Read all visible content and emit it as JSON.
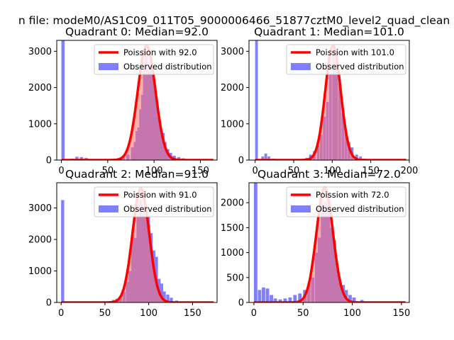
{
  "figure": {
    "title": "n file: modeM0/AS1C09_011T05_9000006466_51877cztM0_level2_quad_clean"
  },
  "style": {
    "hist_color": "#8080ff",
    "fit_color": "#ff0000",
    "fit_fill": "rgba(255,110,110,0.55)",
    "axis_color": "#000000"
  },
  "chart_data": [
    {
      "type": "bar",
      "title": "Quadrant 0: Median=92.0",
      "legend": [
        "Poission with 92.0",
        "Observed distribution"
      ],
      "legend_position": "top-right",
      "xlim": [
        -5,
        168
      ],
      "ylim": [
        0,
        3300
      ],
      "xticks": [
        0,
        50,
        100,
        150
      ],
      "yticks": [
        0,
        1000,
        2000,
        3000
      ],
      "mean": 92,
      "fit_peak": 3150,
      "bins": [
        [
          0,
          3300
        ],
        [
          10,
          40
        ],
        [
          15,
          90
        ],
        [
          20,
          80
        ],
        [
          25,
          60
        ],
        [
          30,
          30
        ],
        [
          40,
          20
        ],
        [
          50,
          10
        ],
        [
          60,
          20
        ],
        [
          65,
          60
        ],
        [
          70,
          150
        ],
        [
          75,
          350
        ],
        [
          78,
          500
        ],
        [
          80,
          800
        ],
        [
          82,
          900
        ],
        [
          84,
          1400
        ],
        [
          86,
          1800
        ],
        [
          88,
          2500
        ],
        [
          90,
          2900
        ],
        [
          92,
          2500
        ],
        [
          94,
          2600
        ],
        [
          96,
          2500
        ],
        [
          98,
          2100
        ],
        [
          100,
          1650
        ],
        [
          102,
          1200
        ],
        [
          104,
          1100
        ],
        [
          106,
          800
        ],
        [
          108,
          750
        ],
        [
          110,
          500
        ],
        [
          113,
          300
        ],
        [
          116,
          200
        ],
        [
          120,
          120
        ],
        [
          125,
          80
        ],
        [
          130,
          50
        ],
        [
          140,
          20
        ],
        [
          150,
          10
        ],
        [
          160,
          5
        ]
      ]
    },
    {
      "type": "bar",
      "title": "Quadrant 1: Median=101.0",
      "legend": [
        "Poission with 101.0",
        "Observed distribution"
      ],
      "legend_position": "top-right",
      "xlim": [
        -8,
        200
      ],
      "ylim": [
        0,
        3300
      ],
      "xticks": [
        0,
        50,
        100,
        150,
        200
      ],
      "yticks": [
        0,
        1000,
        2000,
        3000
      ],
      "mean": 101,
      "fit_peak": 3150,
      "bins": [
        [
          0,
          3300
        ],
        [
          8,
          100
        ],
        [
          12,
          180
        ],
        [
          16,
          100
        ],
        [
          22,
          40
        ],
        [
          30,
          20
        ],
        [
          45,
          10
        ],
        [
          60,
          20
        ],
        [
          65,
          60
        ],
        [
          70,
          150
        ],
        [
          75,
          250
        ],
        [
          80,
          400
        ],
        [
          84,
          700
        ],
        [
          88,
          1200
        ],
        [
          92,
          1600
        ],
        [
          96,
          2400
        ],
        [
          100,
          3000
        ],
        [
          102,
          2700
        ],
        [
          104,
          2600
        ],
        [
          108,
          2100
        ],
        [
          112,
          1300
        ],
        [
          116,
          800
        ],
        [
          120,
          500
        ],
        [
          124,
          350
        ],
        [
          130,
          150
        ],
        [
          135,
          100
        ],
        [
          140,
          40
        ],
        [
          150,
          20
        ],
        [
          165,
          10
        ],
        [
          185,
          5
        ]
      ]
    },
    {
      "type": "bar",
      "title": "Quadrant 2: Median=91.0",
      "legend": [
        "Poission with 91.0",
        "Observed distribution"
      ],
      "legend_position": "top-right",
      "xlim": [
        -5,
        178
      ],
      "ylim": [
        0,
        3800
      ],
      "xticks": [
        0,
        50,
        100,
        150
      ],
      "yticks": [
        0,
        1000,
        2000,
        3000
      ],
      "mean": 91,
      "fit_peak": 3620,
      "bins": [
        [
          0,
          3250
        ],
        [
          30,
          10
        ],
        [
          50,
          20
        ],
        [
          58,
          80
        ],
        [
          62,
          120
        ],
        [
          66,
          200
        ],
        [
          70,
          350
        ],
        [
          74,
          650
        ],
        [
          77,
          1000
        ],
        [
          80,
          2150
        ],
        [
          83,
          2050
        ],
        [
          86,
          2750
        ],
        [
          89,
          3250
        ],
        [
          92,
          2850
        ],
        [
          95,
          2750
        ],
        [
          98,
          2750
        ],
        [
          101,
          2200
        ],
        [
          104,
          1650
        ],
        [
          107,
          1450
        ],
        [
          110,
          750
        ],
        [
          113,
          600
        ],
        [
          116,
          350
        ],
        [
          120,
          250
        ],
        [
          124,
          150
        ],
        [
          130,
          60
        ],
        [
          140,
          30
        ],
        [
          155,
          10
        ],
        [
          170,
          5
        ]
      ]
    },
    {
      "type": "bar",
      "title": "Quadrant 3: Median=72.0",
      "legend": [
        "Poission with 72.0",
        "Observed distribution"
      ],
      "legend_position": "top-right",
      "xlim": [
        -5,
        158
      ],
      "ylim": [
        0,
        2400
      ],
      "xticks": [
        0,
        50,
        100,
        150
      ],
      "yticks": [
        0,
        500,
        1000,
        1500,
        2000
      ],
      "mean": 72,
      "fit_peak": 2300,
      "bins": [
        [
          0,
          2400
        ],
        [
          4,
          250
        ],
        [
          8,
          300
        ],
        [
          12,
          280
        ],
        [
          16,
          150
        ],
        [
          20,
          80
        ],
        [
          25,
          60
        ],
        [
          30,
          80
        ],
        [
          35,
          100
        ],
        [
          40,
          150
        ],
        [
          45,
          180
        ],
        [
          50,
          250
        ],
        [
          54,
          350
        ],
        [
          58,
          500
        ],
        [
          62,
          1000
        ],
        [
          65,
          1300
        ],
        [
          68,
          1800
        ],
        [
          71,
          2000
        ],
        [
          74,
          1950
        ],
        [
          77,
          1500
        ],
        [
          80,
          1250
        ],
        [
          83,
          700
        ],
        [
          86,
          400
        ],
        [
          89,
          350
        ],
        [
          92,
          250
        ],
        [
          96,
          150
        ],
        [
          100,
          100
        ],
        [
          108,
          50
        ],
        [
          120,
          20
        ],
        [
          135,
          10
        ],
        [
          150,
          5
        ]
      ]
    }
  ]
}
